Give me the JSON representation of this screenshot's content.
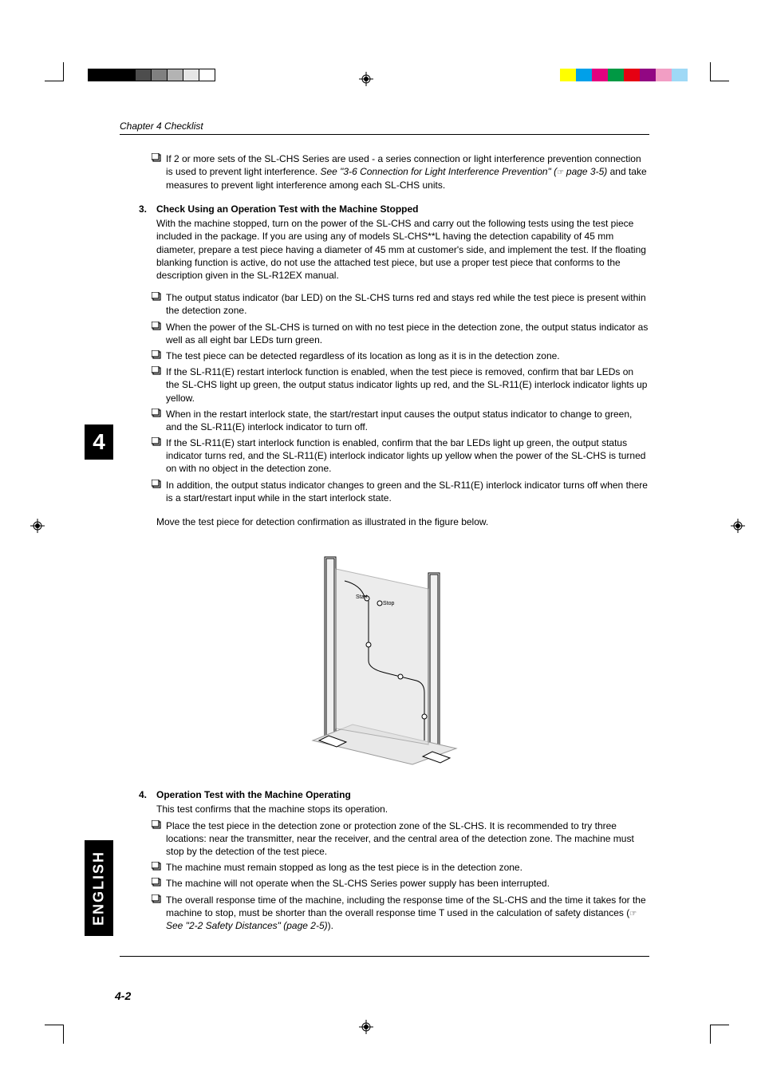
{
  "chapter_header": "Chapter 4  Checklist",
  "section_number": "4",
  "english_label": "ENGLISH",
  "page_number": "4-2",
  "color_bar_left": [
    "#000000",
    "#000000",
    "#000000",
    "#4d4d4d",
    "#808080",
    "#b3b3b3",
    "#e6e6e6",
    "#ffffff"
  ],
  "color_bar_right": [
    "#ffff00",
    "#00a0e9",
    "#e4007f",
    "#009944",
    "#e60012",
    "#920783",
    "#f29ec4",
    "#9fd9f6"
  ],
  "intro_item": {
    "text_before_italic": "If 2 or more sets of the SL-CHS Series are used - a series connection or light interference prevention connection is used to prevent light interference. ",
    "italic": "See \"3-6 Connection for Light Interference Prevention\" (",
    "ref": "page 3-5)",
    "text_after": " and take measures to prevent light interference among each SL-CHS units."
  },
  "section3": {
    "num": "3.",
    "title": "Check Using an Operation Test with the Machine Stopped",
    "body": "With the machine stopped, turn on the power of the SL-CHS and carry out the following tests using the test piece included in the package. If you are using any of models SL-CHS**L having the detection capability of 45 mm diameter, prepare a test piece having a diameter of 45 mm at customer's side, and implement the test. If the floating blanking function is active, do not use the attached test piece, but use a proper test piece that conforms to the description given in the SL-R12EX manual.",
    "items": [
      "The output status indicator (bar LED) on the SL-CHS turns red and stays red while the test piece is present within the detection zone.",
      "When the power of the SL-CHS is turned on with no test piece in the detection zone, the output status indicator as well as all eight bar LEDs turn green.",
      "The test piece can be detected regardless of its location as long as it is in the detection zone.",
      "If the SL-R11(E) restart interlock function is enabled, when the test piece is removed, confirm that bar LEDs on the SL-CHS light up green, the output status indicator lights up red, and the SL-R11(E) interlock indicator lights up yellow.",
      "When in the restart interlock state, the start/restart input causes the output status indicator to change to green, and the SL-R11(E) interlock indicator to turn off.",
      "If the SL-R11(E) start interlock function is enabled, confirm that the bar LEDs light up green, the output status indicator turns red, and the SL-R11(E) interlock indicator lights up yellow when the power of the SL-CHS is turned on with no object in the detection zone.",
      "In addition, the output status indicator changes to green and the SL-R11(E) interlock indicator turns off when there is a start/restart input while in the start interlock state."
    ],
    "move_text": "Move the test piece for detection confirmation as illustrated in the figure below."
  },
  "figure": {
    "start_label": "Start",
    "stop_label": "Stop"
  },
  "section4": {
    "num": "4.",
    "title": "Operation Test with the Machine Operating",
    "intro": "This test confirms that the machine stops its operation.",
    "items": [
      "Place the test piece in the detection zone or protection zone of the SL-CHS.  It is recommended to try three locations: near the transmitter, near the receiver, and the central area of the detection zone.  The machine must stop by the detection of the test piece.",
      "The machine must remain stopped as long as the test piece is in the detection zone.",
      "The machine will not operate when the SL-CHS Series power supply has been interrupted."
    ],
    "last_item_before": "The overall response time of the machine, including the response time of the SL-CHS and the time it takes for the machine to stop, must be shorter than the overall response time T used in the calculation of safety distances (",
    "last_item_italic": "See \"2-2 Safety Distances\" (page 2-5)",
    "last_item_after": ")."
  }
}
